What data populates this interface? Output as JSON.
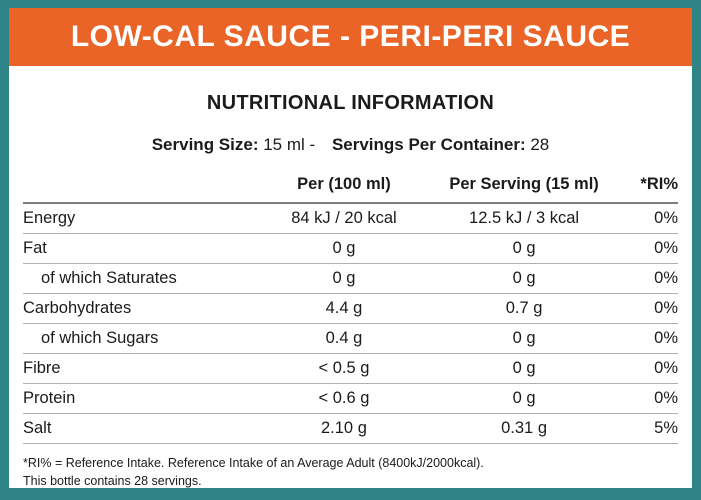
{
  "banner": {
    "title": "LOW-CAL SAUCE - PERI-PERI SAUCE",
    "bg_color": "#E96426",
    "text_color": "#FFFFFF"
  },
  "frame_color": "#2E8486",
  "header": {
    "title": "NUTRITIONAL INFORMATION"
  },
  "serving": {
    "size_label": "Serving Size:",
    "size_value": "15 ml",
    "separator": "-",
    "count_label": "Servings Per Container:",
    "count_value": "28"
  },
  "table": {
    "columns": [
      "",
      "Per (100 ml)",
      "Per Serving (15 ml)",
      "*RI%"
    ],
    "rows": [
      {
        "name": "Energy",
        "per100": "84 kJ / 20 kcal",
        "perServing": "12.5 kJ / 3 kcal",
        "ri": "0%",
        "indent": false
      },
      {
        "name": "Fat",
        "per100": "0 g",
        "perServing": "0 g",
        "ri": "0%",
        "indent": false
      },
      {
        "name": "of which Saturates",
        "per100": "0 g",
        "perServing": "0 g",
        "ri": "0%",
        "indent": true
      },
      {
        "name": "Carbohydrates",
        "per100": "4.4 g",
        "perServing": "0.7 g",
        "ri": "0%",
        "indent": false
      },
      {
        "name": "of which Sugars",
        "per100": "0.4 g",
        "perServing": "0 g",
        "ri": "0%",
        "indent": true
      },
      {
        "name": "Fibre",
        "per100": "< 0.5 g",
        "perServing": "0 g",
        "ri": "0%",
        "indent": false
      },
      {
        "name": "Protein",
        "per100": "< 0.6 g",
        "perServing": "0 g",
        "ri": "0%",
        "indent": false
      },
      {
        "name": "Salt",
        "per100": "2.10 g",
        "perServing": "0.31 g",
        "ri": "5%",
        "indent": false
      }
    ]
  },
  "footer": {
    "line1": "*RI% = Reference Intake. Reference Intake of an Average Adult (8400kJ/2000kcal).",
    "line2": "This bottle contains 28 servings."
  }
}
